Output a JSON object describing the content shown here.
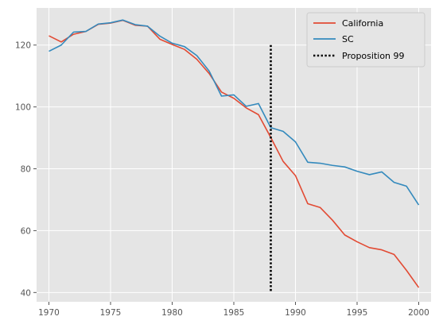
{
  "chart_data": {
    "type": "line",
    "title": "",
    "xlabel": "",
    "ylabel": "",
    "xlim": [
      1969,
      2001
    ],
    "ylim": [
      37,
      132
    ],
    "x_ticks": [
      1970,
      1975,
      1980,
      1985,
      1990,
      1995,
      2000
    ],
    "y_ticks": [
      40,
      60,
      80,
      100,
      120
    ],
    "grid": true,
    "legend_position": "top-right",
    "x": [
      1970,
      1971,
      1972,
      1973,
      1974,
      1975,
      1976,
      1977,
      1978,
      1979,
      1980,
      1981,
      1982,
      1983,
      1984,
      1985,
      1986,
      1987,
      1988,
      1989,
      1990,
      1991,
      1992,
      1993,
      1994,
      1995,
      1996,
      1997,
      1998,
      1999,
      2000
    ],
    "series": [
      {
        "name": "California",
        "color": "#E24A33",
        "values": [
          123.0,
          121.0,
          123.5,
          124.4,
          126.7,
          127.1,
          128.0,
          126.4,
          126.1,
          121.9,
          120.2,
          118.6,
          115.4,
          110.8,
          104.8,
          102.8,
          99.7,
          97.5,
          90.1,
          82.4,
          77.8,
          68.7,
          67.5,
          63.4,
          58.6,
          56.4,
          54.5,
          53.8,
          52.3,
          47.2,
          41.6
        ]
      },
      {
        "name": "SC",
        "color": "#348ABD",
        "values": [
          118.0,
          120.0,
          124.2,
          124.4,
          126.8,
          127.2,
          128.1,
          126.6,
          126.1,
          122.9,
          120.6,
          119.5,
          116.6,
          111.6,
          103.5,
          103.9,
          100.2,
          101.1,
          93.3,
          92.1,
          88.7,
          82.1,
          81.8,
          81.1,
          80.6,
          79.2,
          78.1,
          79.0,
          75.6,
          74.4,
          68.3
        ]
      }
    ],
    "vertical_line": {
      "name": "Proposition 99",
      "x": 1988,
      "y_range": [
        40,
        120
      ],
      "color": "#000000",
      "style": "dotted"
    }
  }
}
